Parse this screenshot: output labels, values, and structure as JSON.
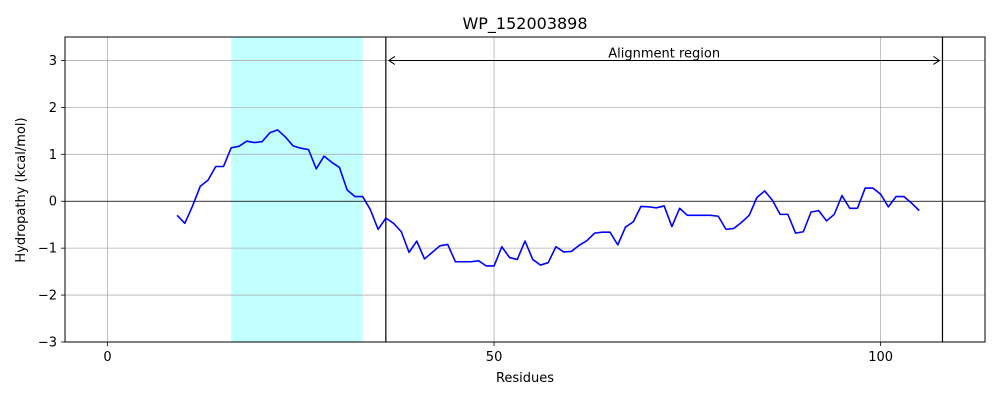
{
  "chart_data": {
    "type": "line",
    "title": "WP_152003898",
    "xlabel": "Residues",
    "ylabel": "Hydropathy (kcal/mol)",
    "xlim": [
      -5.5,
      113.5
    ],
    "ylim": [
      -3,
      3.5
    ],
    "xticks": [
      0,
      50,
      100
    ],
    "yticks": [
      -3,
      -2,
      -1,
      0,
      1,
      2,
      3
    ],
    "grid": true,
    "zero_line": true,
    "highlight_region": {
      "x": [
        16,
        33
      ],
      "color": "#c2ffff"
    },
    "alignment_region": {
      "label": "Alignment region",
      "x": [
        36,
        108
      ],
      "y": 3
    },
    "series": [
      {
        "color": "#0000ff",
        "x": [
          9,
          10,
          11,
          12,
          13,
          14,
          15,
          16,
          17,
          18,
          19,
          20,
          21,
          22,
          23,
          24,
          25,
          26,
          27,
          28,
          29,
          30,
          31,
          32,
          33,
          34,
          35,
          36,
          37,
          38,
          39,
          40,
          41,
          42,
          43,
          44,
          45,
          46,
          47,
          48,
          49,
          50,
          51,
          52,
          53,
          54,
          55,
          56,
          57,
          58,
          59,
          60,
          61,
          62,
          63,
          64,
          65,
          66,
          67,
          68,
          69,
          70,
          71,
          72,
          73,
          74,
          75,
          76,
          77,
          78,
          79,
          80,
          81,
          82,
          83,
          84,
          85,
          86,
          87,
          88,
          89,
          90,
          91,
          92,
          93,
          94,
          95,
          96,
          97,
          98,
          99,
          100,
          101,
          102,
          103,
          104,
          105
        ],
        "values": [
          -0.3,
          -0.47,
          -0.1,
          0.32,
          0.45,
          0.74,
          0.74,
          1.14,
          1.17,
          1.28,
          1.25,
          1.27,
          1.46,
          1.52,
          1.37,
          1.18,
          1.13,
          1.1,
          0.69,
          0.96,
          0.83,
          0.72,
          0.24,
          0.1,
          0.1,
          -0.18,
          -0.6,
          -0.36,
          -0.47,
          -0.65,
          -1.09,
          -0.85,
          -1.23,
          -1.09,
          -0.95,
          -0.92,
          -1.29,
          -1.29,
          -1.29,
          -1.27,
          -1.38,
          -1.38,
          -0.97,
          -1.2,
          -1.24,
          -0.85,
          -1.24,
          -1.36,
          -1.31,
          -0.97,
          -1.08,
          -1.07,
          -0.94,
          -0.84,
          -0.68,
          -0.66,
          -0.66,
          -0.93,
          -0.55,
          -0.44,
          -0.11,
          -0.12,
          -0.14,
          -0.1,
          -0.54,
          -0.15,
          -0.3,
          -0.3,
          -0.3,
          -0.3,
          -0.32,
          -0.6,
          -0.58,
          -0.45,
          -0.3,
          0.08,
          0.22,
          0.02,
          -0.28,
          -0.28,
          -0.68,
          -0.65,
          -0.23,
          -0.2,
          -0.42,
          -0.28,
          0.12,
          -0.15,
          -0.15,
          0.28,
          0.28,
          0.15,
          -0.12,
          0.1,
          0.1,
          -0.04,
          -0.2
        ]
      }
    ]
  }
}
